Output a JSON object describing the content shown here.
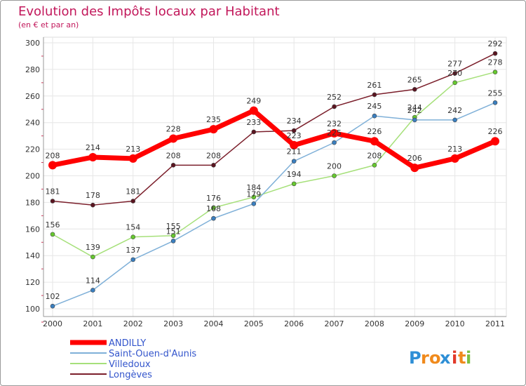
{
  "chart_data": {
    "type": "line",
    "title": "Evolution des Impôts locaux par Habitant",
    "subtitle": "(en € et par an)",
    "xlabel": "",
    "ylabel": "",
    "x": [
      "2000",
      "2001",
      "2002",
      "2003",
      "2004",
      "2005",
      "2006",
      "2007",
      "2008",
      "2009",
      "2010",
      "2011"
    ],
    "ylim": [
      100,
      300
    ],
    "yticks": [
      "100",
      "120",
      "140",
      "160",
      "180",
      "200",
      "220",
      "240",
      "260",
      "280",
      "300"
    ],
    "grid": true,
    "legend_position": "bottom-left",
    "series": [
      {
        "name": "Longèves",
        "color": "#7b1f2b",
        "marker": "#5a1420",
        "values": [
          181,
          178,
          181,
          208,
          208,
          233,
          234,
          252,
          261,
          265,
          277,
          292
        ]
      },
      {
        "name": "Villedoux",
        "color": "#a6e07a",
        "marker": "#66c92e",
        "values": [
          156,
          139,
          154,
          155,
          176,
          184,
          194,
          200,
          208,
          244,
          270,
          278
        ]
      },
      {
        "name": "Saint-Ouen-d'Aunis",
        "color": "#7fb0d8",
        "marker": "#3a7fc0",
        "values": [
          102,
          114,
          137,
          151,
          168,
          179,
          211,
          225,
          245,
          242,
          242,
          255
        ]
      },
      {
        "name": "ANDILLY",
        "color": "#ff0000",
        "marker": "#ff0000",
        "values": [
          208,
          214,
          213,
          228,
          235,
          249,
          223,
          232,
          226,
          206,
          213,
          226
        ]
      }
    ]
  },
  "legend": {
    "items": [
      {
        "label": "ANDILLY",
        "color": "#ff0000"
      },
      {
        "label": "Saint-Ouen-d'Aunis",
        "color": "#7fb0d8"
      },
      {
        "label": "Villedoux",
        "color": "#a6e07a"
      },
      {
        "label": "Longèves",
        "color": "#7b1f2b"
      }
    ]
  },
  "logo": {
    "letters": [
      "P",
      "r",
      "o",
      "x",
      "i",
      "t",
      "i"
    ],
    "colors": [
      "#2e8fd6",
      "#f08a1c",
      "#f08a1c",
      "#2e8fd6",
      "#e23a2a",
      "#f08a1c",
      "#7cc043"
    ]
  }
}
